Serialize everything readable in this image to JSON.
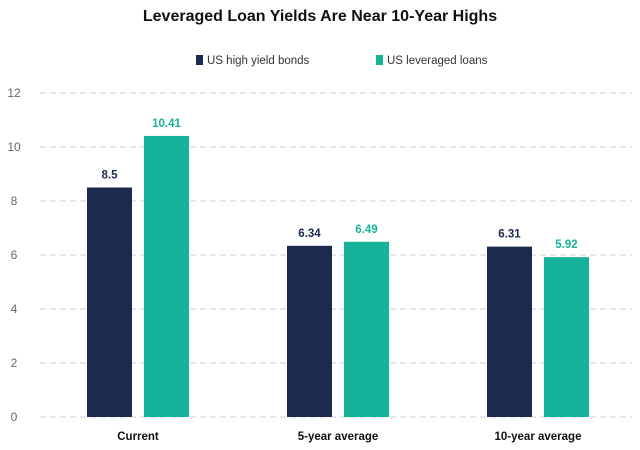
{
  "chart_data": {
    "type": "bar",
    "title": "Leveraged Loan Yields Are Near 10-Year Highs",
    "categories": [
      "Current",
      "5-year average",
      "10-year average"
    ],
    "series": [
      {
        "name": "US high yield bonds",
        "values": [
          8.5,
          6.34,
          6.31
        ],
        "labels": [
          "8.5",
          "6.34",
          "6.31"
        ],
        "color": "#1b2a4e"
      },
      {
        "name": "US leveraged loans",
        "values": [
          10.41,
          6.49,
          5.92
        ],
        "labels": [
          "10.41",
          "6.49",
          "5.92"
        ],
        "color": "#15b39a"
      }
    ],
    "ylim": [
      0,
      12
    ],
    "yticks": [
      0,
      2,
      4,
      6,
      8,
      10,
      12
    ],
    "xlabel": "",
    "ylabel": "",
    "grid": true,
    "legend": "top-center"
  }
}
